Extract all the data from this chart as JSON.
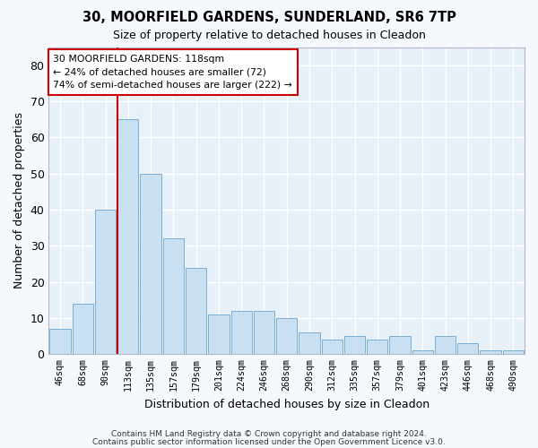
{
  "title": "30, MOORFIELD GARDENS, SUNDERLAND, SR6 7TP",
  "subtitle": "Size of property relative to detached houses in Cleadon",
  "xlabel": "Distribution of detached houses by size in Cleadon",
  "ylabel": "Number of detached properties",
  "bar_color": "#c9dff2",
  "bar_edge_color": "#7aaed4",
  "bg_color": "#e8f0f8",
  "grid_color": "#ffffff",
  "categories": [
    "46sqm",
    "68sqm",
    "90sqm",
    "113sqm",
    "135sqm",
    "157sqm",
    "179sqm",
    "201sqm",
    "224sqm",
    "246sqm",
    "268sqm",
    "290sqm",
    "312sqm",
    "335sqm",
    "357sqm",
    "379sqm",
    "401sqm",
    "423sqm",
    "446sqm",
    "468sqm",
    "490sqm"
  ],
  "values": [
    7,
    14,
    40,
    65,
    50,
    32,
    24,
    11,
    12,
    12,
    10,
    6,
    4,
    5,
    4,
    5,
    1,
    5,
    3,
    1,
    1
  ],
  "ylim": [
    0,
    85
  ],
  "yticks": [
    0,
    10,
    20,
    30,
    40,
    50,
    60,
    70,
    80
  ],
  "annotation_line1": "30 MOORFIELD GARDENS: 118sqm",
  "annotation_line2": "← 24% of detached houses are smaller (72)",
  "annotation_line3": "74% of semi-detached houses are larger (222) →",
  "red_line_color": "#cc0000",
  "footer1": "Contains HM Land Registry data © Crown copyright and database right 2024.",
  "footer2": "Contains public sector information licensed under the Open Government Licence v3.0."
}
